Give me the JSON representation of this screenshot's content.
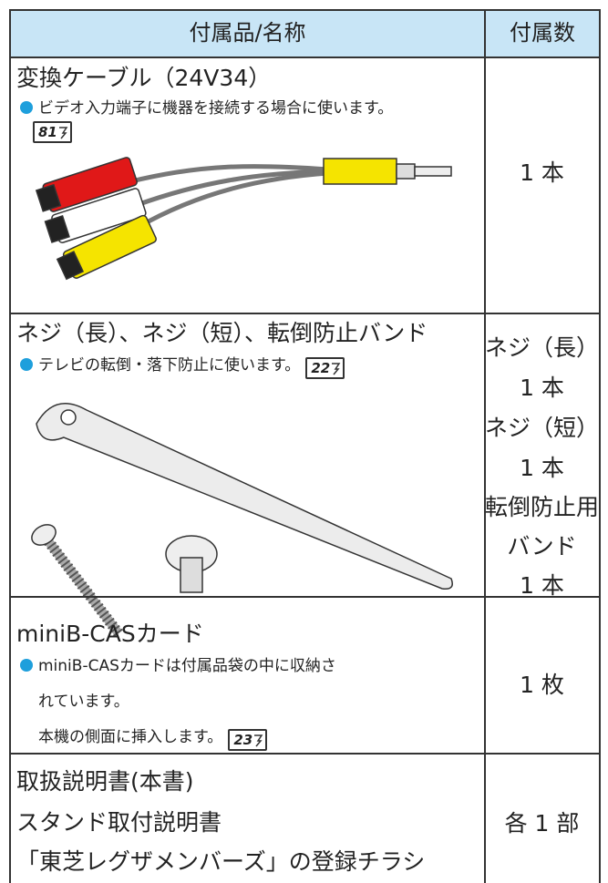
{
  "table": {
    "header": [
      "付属品/名称",
      "付属数"
    ],
    "rows": [
      {
        "name": [
          "変換ケーブル（24V34）"
        ],
        "notes": [
          {
            "text": "ビデオ入力端子に機器を接続する場合に使います。",
            "ref": "81"
          }
        ],
        "count": [
          "1 本"
        ]
      },
      {
        "name": [
          "ネジ（長）、ネジ（短）、転倒防止バンド"
        ],
        "notes": [
          {
            "text": "テレビの転倒・落下防止に使います。",
            "ref": "22"
          }
        ],
        "count": [
          "ネジ（長）",
          "1 本",
          "ネジ（短）",
          "1 本",
          "転倒防止用",
          "バンド",
          "1 本"
        ]
      },
      {
        "name": [
          "miniB-CASカード"
        ],
        "notes": [
          {
            "text": "miniB-CASカードは付属品袋の中に収納さ"
          },
          {
            "text": "れています。"
          },
          {
            "text": "本機の側面に挿入します。",
            "ref": "23"
          }
        ],
        "count": [
          "1 枚"
        ]
      },
      {
        "name": [
          "取扱説明書(本書)",
          "スタンド取付説明書",
          "「東芝レグザメンバーズ」の登録チラシ"
        ],
        "notes": [],
        "count": [
          "各 1 部"
        ]
      }
    ]
  }
}
